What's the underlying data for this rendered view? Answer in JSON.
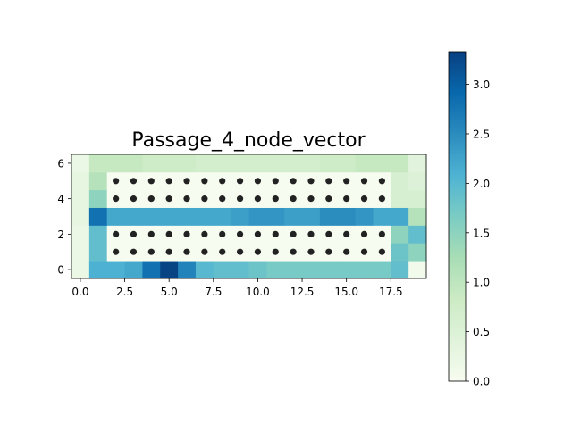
{
  "chart_data": {
    "type": "heatmap",
    "title": "Passage_4_node_vector",
    "xlabel": "",
    "ylabel": "",
    "x_range": [
      -0.5,
      19.5
    ],
    "y_range": [
      -0.5,
      6.5
    ],
    "x_ticks": [
      0.0,
      2.5,
      5.0,
      7.5,
      10.0,
      12.5,
      15.0,
      17.5
    ],
    "x_tick_labels": [
      "0.0",
      "2.5",
      "5.0",
      "7.5",
      "10.0",
      "12.5",
      "15.0",
      "17.5"
    ],
    "y_ticks": [
      0,
      2,
      4,
      6
    ],
    "y_tick_labels": [
      "0",
      "2",
      "4",
      "6"
    ],
    "colormap": "GnBu",
    "color_range": [
      0.0,
      3.33
    ],
    "colorbar_ticks": [
      0.0,
      0.5,
      1.0,
      1.5,
      2.0,
      2.5,
      3.0
    ],
    "colorbar_tick_labels": [
      "0.0",
      "0.5",
      "1.0",
      "1.5",
      "2.0",
      "2.5",
      "3.0"
    ],
    "grid": false,
    "rows_bottom_to_top": [
      [
        0.2,
        2.1,
        2.1,
        2.2,
        2.8,
        3.3,
        2.6,
        2.0,
        1.9,
        1.9,
        1.8,
        1.7,
        1.7,
        1.7,
        1.7,
        1.7,
        1.7,
        1.7,
        1.9,
        0.1
      ],
      [
        0.2,
        1.9,
        0.0,
        0.0,
        0.0,
        0.0,
        0.0,
        0.0,
        0.0,
        0.0,
        0.0,
        0.0,
        0.0,
        0.0,
        0.0,
        0.0,
        0.0,
        0.0,
        1.8,
        1.5
      ],
      [
        0.2,
        1.9,
        0.0,
        0.0,
        0.0,
        0.0,
        0.0,
        0.0,
        0.0,
        0.0,
        0.0,
        0.0,
        0.0,
        0.0,
        0.0,
        0.0,
        0.0,
        0.0,
        1.5,
        1.9
      ],
      [
        0.3,
        2.8,
        2.2,
        2.2,
        2.2,
        2.2,
        2.2,
        2.2,
        2.2,
        2.3,
        2.4,
        2.4,
        2.3,
        2.3,
        2.5,
        2.5,
        2.4,
        2.2,
        2.2,
        1.1
      ],
      [
        0.3,
        1.5,
        0.0,
        0.0,
        0.0,
        0.0,
        0.0,
        0.0,
        0.0,
        0.0,
        0.0,
        0.0,
        0.0,
        0.0,
        0.0,
        0.0,
        0.0,
        0.0,
        0.6,
        0.6
      ],
      [
        0.3,
        1.1,
        0.0,
        0.0,
        0.0,
        0.0,
        0.0,
        0.0,
        0.0,
        0.0,
        0.0,
        0.0,
        0.0,
        0.0,
        0.0,
        0.0,
        0.0,
        0.0,
        0.6,
        0.5
      ],
      [
        0.2,
        0.9,
        0.9,
        0.9,
        0.8,
        0.8,
        0.8,
        0.7,
        0.7,
        0.7,
        0.7,
        0.7,
        0.7,
        0.7,
        0.8,
        0.8,
        0.9,
        0.9,
        0.9,
        0.4
      ]
    ],
    "scatter_points": {
      "color": "#222222",
      "x": [
        2,
        3,
        4,
        5,
        6,
        7,
        8,
        9,
        10,
        11,
        12,
        13,
        14,
        15,
        16,
        17
      ],
      "y": [
        1,
        2,
        4,
        5
      ]
    }
  }
}
